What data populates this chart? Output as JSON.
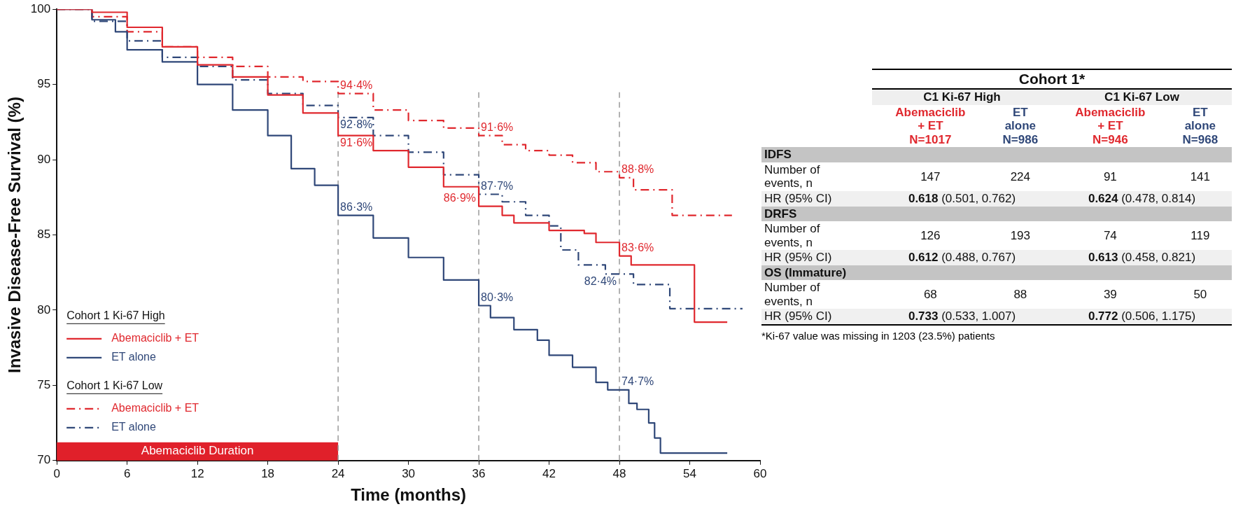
{
  "chart_data": [
    {
      "type": "step",
      "xlabel": "Time (months)",
      "ylabel": "Invasive Disease-Free Survival (%)",
      "xlim": [
        0,
        60
      ],
      "xticks": [
        0,
        6,
        12,
        18,
        24,
        30,
        36,
        42,
        48,
        54,
        60
      ],
      "ylim": [
        70,
        100
      ],
      "yticks": [
        70,
        75,
        80,
        85,
        90,
        95,
        100
      ],
      "grid": false,
      "legend": "bottom left",
      "series": [
        {
          "name": "Abemaciclib + ET",
          "color": "#e0282e",
          "line_style": "solid",
          "x": [
            0,
            3,
            6,
            9,
            12,
            15,
            18,
            21,
            24,
            27,
            30,
            33,
            36,
            38,
            39,
            42,
            45,
            46,
            48,
            49,
            54.4,
            57.2
          ],
          "values": [
            100,
            99.8,
            98.8,
            97.5,
            96.3,
            95.5,
            94.3,
            93.1,
            91.6,
            90.6,
            89.5,
            88.2,
            86.9,
            86.3,
            85.8,
            85.3,
            85.1,
            84.5,
            83.6,
            83.0,
            79.2,
            79.2
          ]
        },
        {
          "name": "ET alone",
          "color": "#2f4778",
          "line_style": "solid",
          "x": [
            0,
            3,
            5,
            6,
            9,
            12,
            15,
            18,
            20,
            22,
            24,
            27,
            30,
            33,
            36,
            37,
            39,
            41,
            42,
            44,
            46,
            47,
            48.8,
            49.5,
            50.5,
            51,
            51.5,
            57.2
          ],
          "values": [
            100,
            99.3,
            98.5,
            97.3,
            96.5,
            95.0,
            93.3,
            91.6,
            89.4,
            88.3,
            86.3,
            84.8,
            83.5,
            82.0,
            80.3,
            79.5,
            78.7,
            78.0,
            77.0,
            76.2,
            75.2,
            74.7,
            73.8,
            73.4,
            72.5,
            71.5,
            70.5,
            70.5
          ]
        },
        {
          "name": "Abemaciclib + ET",
          "color": "#e0282e",
          "line_style": "dashed",
          "x": [
            0,
            3,
            6,
            9,
            12,
            15,
            18,
            21,
            24,
            27,
            30,
            33,
            36,
            38,
            40,
            42,
            44,
            46,
            48,
            49.2,
            52.5,
            57.6
          ],
          "values": [
            100,
            99.5,
            98.5,
            97.5,
            96.8,
            96.2,
            95.5,
            95.2,
            94.4,
            93.3,
            92.6,
            92.1,
            91.6,
            91.0,
            90.6,
            90.3,
            89.8,
            89.2,
            88.8,
            88.0,
            86.3,
            86.3
          ]
        },
        {
          "name": "ET alone",
          "color": "#2f4778",
          "line_style": "dashed",
          "x": [
            0,
            3,
            6,
            9,
            12,
            15,
            18,
            21,
            24,
            27,
            30,
            33,
            36,
            38,
            40,
            42,
            43,
            44.5,
            46.8,
            49.2,
            52.3,
            58.5
          ],
          "values": [
            100,
            99.2,
            97.9,
            96.8,
            96.2,
            95.3,
            94.4,
            93.6,
            92.8,
            91.6,
            90.5,
            89.0,
            87.7,
            87.2,
            86.3,
            85.6,
            84.0,
            83.0,
            82.4,
            81.7,
            80.1,
            80.1
          ]
        }
      ],
      "ref_lines": [
        {
          "axis": "x",
          "value": 24,
          "color": "#9a9a9a",
          "line_style": "dashed"
        },
        {
          "axis": "x",
          "value": 36,
          "color": "#9a9a9a",
          "line_style": "dashed"
        },
        {
          "axis": "x",
          "value": 48,
          "color": "#9a9a9a",
          "line_style": "dashed"
        }
      ],
      "bands": [
        {
          "axis": "x",
          "from": 0,
          "to": 24,
          "label": "Abemaciclib Duration",
          "color": "#e0202a"
        }
      ],
      "annotations": [
        "Cohort 1 Ki-67 High",
        "Cohort 1 Ki-67 Low",
        {
          "text": "94·4%",
          "x": 24,
          "y": 94.4
        },
        {
          "text": "92·8%",
          "x": 24,
          "y": 92.8
        },
        {
          "text": "91·6%",
          "x": 24,
          "y": 91.6
        },
        {
          "text": "86·3%",
          "x": 24,
          "y": 86.3
        },
        {
          "text": "91·6%",
          "x": 36,
          "y": 91.6
        },
        {
          "text": "87·7%",
          "x": 36,
          "y": 87.7
        },
        {
          "text": "86·9%",
          "x": 36,
          "y": 86.9
        },
        {
          "text": "80·3%",
          "x": 36,
          "y": 80.3
        },
        {
          "text": "88·8%",
          "x": 48,
          "y": 88.8
        },
        {
          "text": "83·6%",
          "x": 48,
          "y": 83.6
        },
        {
          "text": "82·4%",
          "x": 48,
          "y": 82.4
        },
        {
          "text": "74·7%",
          "x": 48,
          "y": 74.7
        }
      ]
    },
    {
      "type": "other",
      "title": "Cohort 1*",
      "annotations": [
        "C1 Ki-67 High",
        "C1 Ki-67 Low",
        "Abemaciclib\n+ ET\nN=1017",
        "ET\nalone\nN=986",
        "Abemaciclib\n+ ET\nN=946",
        "ET\nalone\nN=968",
        "IDFS",
        "Number of\nevents, n",
        "147",
        "224",
        "91",
        "141",
        "HR (95% CI)",
        "0.618",
        "(0.501, 0.762)",
        "0.624",
        "(0.478, 0.814)",
        "DRFS",
        "Number of\nevents, n",
        "126",
        "193",
        "74",
        "119",
        "HR (95% CI)",
        "0.612",
        "(0.488, 0.767)",
        "0.613",
        "(0.458, 0.821)",
        "OS (Immature)",
        "Number of\nevents, n",
        "68",
        "88",
        "39",
        "50",
        "HR (95% CI)",
        "0.733",
        "(0.533, 1.007)",
        "0.772",
        "(0.506, 1.175)",
        "*Ki-67 value was missing in 1203 (23.5%) patients"
      ]
    }
  ]
}
